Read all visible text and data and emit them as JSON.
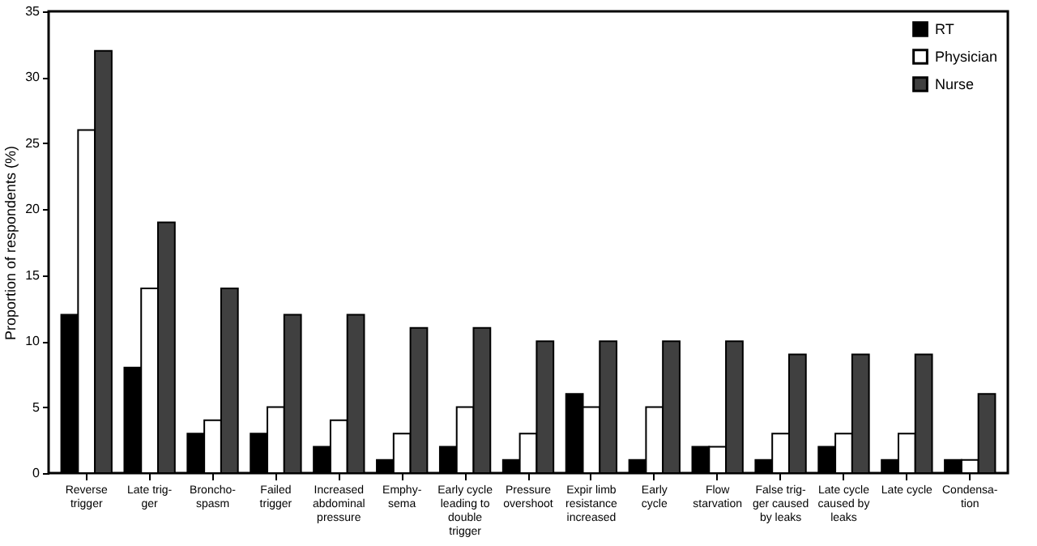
{
  "chart_data": {
    "type": "bar",
    "ylabel": "Proportion of respondents (%)",
    "categories": [
      "Reverse\ntrigger",
      "Late trig-\nger",
      "Broncho-\nspasm",
      "Failed\ntrigger",
      "Increased\nabdominal\npressure",
      "Emphy-\nsema",
      "Early cycle\nleading to\ndouble\ntrigger",
      "Pressure\novershoot",
      "Expir limb\nresistance\nincreased",
      "Early\ncycle",
      "Flow\nstarvation",
      "False trig-\nger caused\nby leaks",
      "Late cycle\ncaused by\nleaks",
      "Late cycle",
      "Condensa-\ntion"
    ],
    "series": [
      {
        "name": "RT",
        "color": "#000000",
        "values": [
          12,
          8,
          3,
          3,
          2,
          1,
          2,
          1,
          6,
          1,
          2,
          1,
          2,
          1,
          1
        ]
      },
      {
        "name": "Physician",
        "color": "#ffffff",
        "values": [
          26,
          14,
          4,
          5,
          4,
          3,
          5,
          3,
          5,
          5,
          2,
          3,
          3,
          3,
          1
        ]
      },
      {
        "name": "Nurse",
        "color": "#404040",
        "values": [
          32,
          19,
          14,
          12,
          12,
          11,
          11,
          10,
          10,
          10,
          10,
          9,
          9,
          9,
          6
        ]
      }
    ],
    "ylim": [
      0,
      35
    ],
    "yticks": [
      0,
      5,
      10,
      15,
      20,
      25,
      30,
      35
    ],
    "grid": false,
    "legend": "top right"
  }
}
